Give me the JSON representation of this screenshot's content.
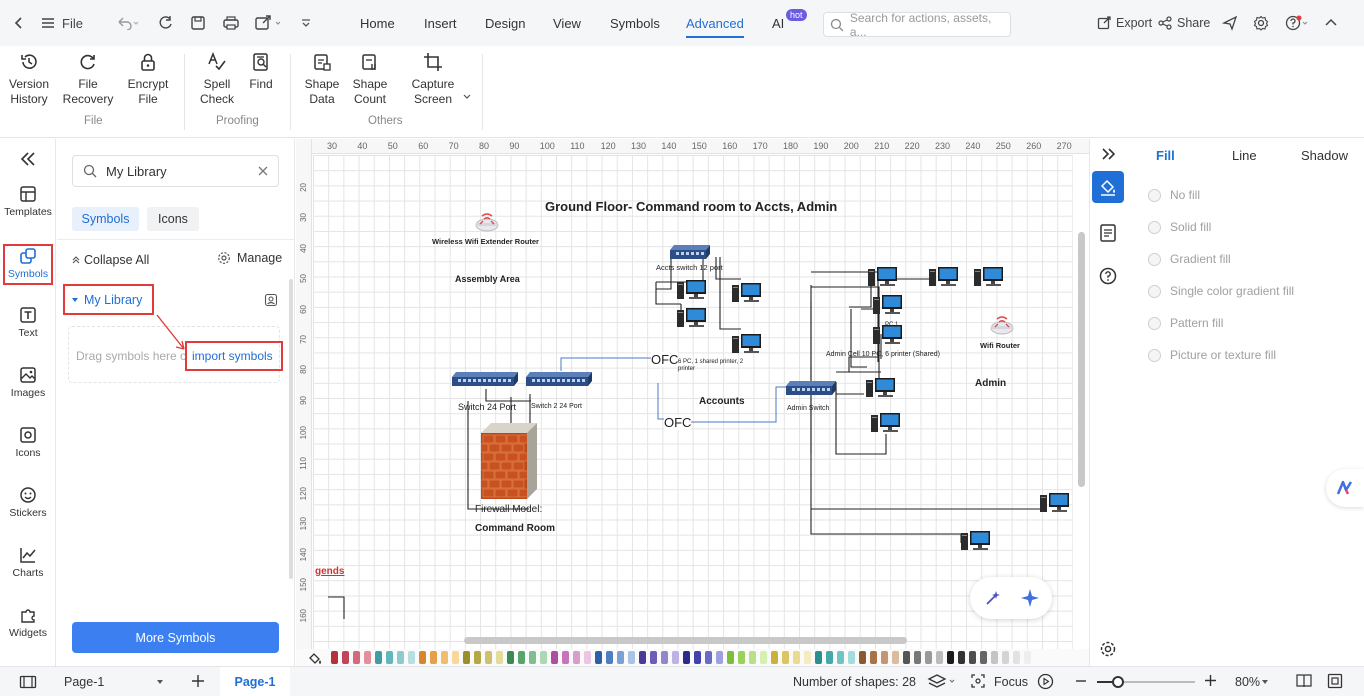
{
  "topbar": {
    "file_label": "File",
    "menu": [
      "Home",
      "Insert",
      "Design",
      "View",
      "Symbols",
      "Advanced",
      "AI"
    ],
    "active_menu": "Advanced",
    "ai_badge": "hot",
    "search_placeholder": "Search for actions, assets, a...",
    "export_label": "Export",
    "share_label": "Share"
  },
  "ribbon": {
    "buttons": [
      {
        "label1": "Version",
        "label2": "History"
      },
      {
        "label1": "File",
        "label2": "Recovery"
      },
      {
        "label1": "Encrypt",
        "label2": "File"
      },
      {
        "label1": "Spell",
        "label2": "Check"
      },
      {
        "label1": "Find",
        "label2": ""
      },
      {
        "label1": "Shape",
        "label2": "Data"
      },
      {
        "label1": "Shape",
        "label2": "Count"
      },
      {
        "label1": "Capture",
        "label2": "Screen"
      }
    ],
    "groups": [
      "File",
      "Proofing",
      "Others"
    ]
  },
  "iconbar": {
    "items": [
      "Templates",
      "Symbols",
      "Text",
      "Images",
      "Icons",
      "Stickers",
      "Charts",
      "Widgets"
    ]
  },
  "library": {
    "search_value": "My Library",
    "tab_symbols": "Symbols",
    "tab_icons": "Icons",
    "collapse_all": "Collapse All",
    "manage": "Manage",
    "section_title": "My Library",
    "drag_text": "Drag symbols here o",
    "import_link": "import symbols",
    "more_symbols": "More Symbols"
  },
  "ruler": {
    "h_ticks": [
      "30",
      "40",
      "50",
      "60",
      "70",
      "80",
      "90",
      "100",
      "110",
      "120",
      "130",
      "140",
      "150",
      "160",
      "170",
      "180",
      "190",
      "200",
      "210",
      "220",
      "230",
      "240",
      "250",
      "260",
      "270"
    ],
    "v_ticks": [
      "20",
      "30",
      "40",
      "50",
      "60",
      "70",
      "80",
      "90",
      "100",
      "110",
      "120",
      "130",
      "140",
      "150",
      "160"
    ]
  },
  "diagram": {
    "title": "Ground Floor- Command room to Accts, Admin",
    "wireless_extender": "Wireless Wifi Extender Router",
    "assembly_area": "Assembly Area",
    "accts_switch": "Accts  switch 12 port",
    "accts_note": "6 PC, 1 shared printer, 2 printer",
    "accounts": "Accounts",
    "ofc1": "OFC",
    "ofc2": "OFC",
    "switch24": "Switch 24 Port",
    "switch2": "Switch 2  24 Port",
    "firewall": "Firewall Model:",
    "command_room": "Command Room",
    "admin_switch": "Admin Switch",
    "admin_note": "Admin  Cell 10 PC, 6 printer (Shared)",
    "pc1": "PC 1",
    "wifi_router": "Wifi Router",
    "admin": "Admin",
    "legends": "gends"
  },
  "props": {
    "tabs": [
      "Fill",
      "Line",
      "Shadow"
    ],
    "active_tab": "Fill",
    "fill_options": [
      "No fill",
      "Solid fill",
      "Gradient fill",
      "Single color gradient fill",
      "Pattern fill",
      "Picture or texture fill"
    ]
  },
  "status": {
    "page_select": "Page-1",
    "page_tab": "Page-1",
    "shape_count": "Number of shapes: 28",
    "focus": "Focus",
    "zoom": "80%"
  },
  "palette": [
    "#b5323a",
    "#c0475a",
    "#d46a7a",
    "#e48fa0",
    "#3f9ea3",
    "#63b7b9",
    "#8ccccf",
    "#b7dee0",
    "#d6862f",
    "#e5a14a",
    "#f0bd6c",
    "#f7d89a",
    "#9b8d2b",
    "#b4a845",
    "#cdc26b",
    "#e3dc9b",
    "#3a8a52",
    "#57a56b",
    "#7fbf8d",
    "#add8b6",
    "#b04fa0",
    "#c774b8",
    "#d99ccd",
    "#ebc6e2",
    "#2e5fa8",
    "#4f7fc1",
    "#7aa1d6",
    "#a9c3e7",
    "#4b3a9a",
    "#6d5db6",
    "#9386cf",
    "#bcb3e4",
    "#2a2a8f",
    "#4242ad",
    "#6a6ac8",
    "#a0a0e0",
    "#7cbf3a",
    "#9ad15b",
    "#b9e183",
    "#d7f0b2",
    "#c9b13b",
    "#dbc663",
    "#e9dc91",
    "#f4ecbf",
    "#2a8f8f",
    "#45a9a9",
    "#70c4c4",
    "#a3dcdc",
    "#8a5a2e",
    "#a77447",
    "#c49571",
    "#dcbca1",
    "#555555",
    "#777777",
    "#999999",
    "#bbbbbb",
    "#1a1a1a",
    "#333333",
    "#4d4d4d",
    "#666666",
    "#c4c4c4",
    "#d4d4d4",
    "#e2e2e2",
    "#eeeeee"
  ]
}
